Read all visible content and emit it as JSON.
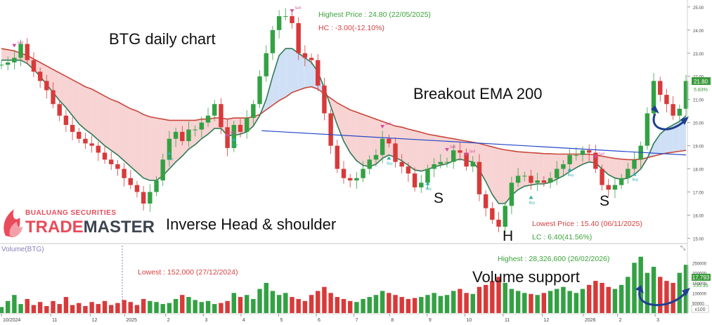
{
  "annotations": {
    "chart_title": "BTG daily chart",
    "breakout": "Breakout EMA 200",
    "pattern": "Inverse Head & shoulder",
    "shoulder_left": "S",
    "head": "H",
    "shoulder_right": "S",
    "volume_note": "Volume support",
    "highest_price": "Highest Price : 24.80 (22/05/2025)",
    "hc": "HC : -3.00(-12.10%)",
    "lowest_price": "Lowest Price : 15.40 (06/11/2025)",
    "lc": "LC : 6.40(41.56%)",
    "volume_highest": "Highest : 28,326,600 (26/02/2026)",
    "volume_lowest": "Lowest : 152,000 (27/12/2024)"
  },
  "logo": {
    "company": "BUALUANG SECURITIES",
    "brand_trade": "TRADE",
    "brand_master": "MASTER"
  },
  "volume_panel": {
    "label": "Volume(BTG)",
    "badge_value": "17,793",
    "badge_value2": "235.35",
    "x100_label": "x100"
  },
  "price_badges": {
    "last_price": "21.80",
    "change_pct": "5.83%"
  },
  "trade_signals": {
    "buy": "Buy",
    "sell": "Sell"
  },
  "chart_data": {
    "type": "line",
    "price_axis": {
      "ticks": [
        "15.00",
        "16.00",
        "17.00",
        "18.00",
        "19.00",
        "20.00",
        "21.00",
        "22.00",
        "23.00",
        "24.00",
        "25.00"
      ],
      "ylim": [
        14.8,
        25.3
      ]
    },
    "volume_axis": {
      "ticks": [
        "50000",
        "100000",
        "150000",
        "200000",
        "250000"
      ]
    },
    "x_axis": {
      "ticks": [
        "10/2024",
        "11",
        "12",
        "2025",
        "2",
        "3",
        "4",
        "5",
        "6",
        "7",
        "8",
        "9",
        "10",
        "11",
        "12",
        "2026",
        "2",
        "3"
      ]
    },
    "series": [
      {
        "name": "BTG",
        "style": "candlestick",
        "values": [
          22.5,
          22.6,
          22.8,
          23.4,
          22.7,
          22.2,
          21.8,
          21.4,
          20.8,
          20.3,
          19.9,
          19.6,
          19.3,
          19.1,
          19.0,
          18.7,
          18.4,
          18.2,
          18.0,
          17.6,
          17.3,
          17.0,
          16.5,
          17.0,
          17.5,
          18.4,
          19.3,
          19.6,
          19.2,
          19.7,
          19.7,
          20.0,
          20.3,
          20.8,
          19.8,
          18.9,
          19.9,
          19.6,
          20.2,
          20.8,
          22.0,
          23.0,
          24.0,
          24.6,
          24.6,
          24.3,
          23.0,
          22.8,
          22.7,
          21.6,
          20.4,
          19.0,
          18.0,
          17.6,
          17.5,
          17.6,
          18.0,
          18.4,
          18.6,
          19.3,
          19.1,
          18.3,
          18.1,
          17.8,
          17.2,
          17.4,
          18.0,
          18.2,
          18.3,
          18.3,
          18.8,
          18.7,
          18.1,
          18.3,
          16.9,
          16.3,
          15.8,
          15.5,
          16.4,
          17.4,
          17.7,
          17.7,
          17.4,
          17.5,
          17.4,
          17.6,
          18.0,
          18.2,
          18.6,
          18.6,
          18.8,
          18.7,
          18.0,
          17.3,
          17.1,
          17.3,
          17.6,
          18.0,
          18.4,
          19.0,
          20.4,
          21.8,
          21.2,
          20.8,
          20.3,
          20.6,
          21.8
        ]
      },
      {
        "name": "EMA 200",
        "style": "line",
        "values": [
          23.2,
          23.15,
          23.1,
          23.0,
          22.9,
          22.75,
          22.6,
          22.45,
          22.3,
          22.15,
          22.0,
          21.85,
          21.7,
          21.55,
          21.45,
          21.3,
          21.15,
          21.0,
          20.9,
          20.75,
          20.6,
          20.5,
          20.35,
          20.25,
          20.2,
          20.15,
          20.1,
          20.1,
          20.1,
          20.1,
          20.1,
          20.15,
          20.15,
          20.2,
          20.2,
          20.15,
          20.2,
          20.2,
          20.2,
          20.25,
          20.35,
          20.55,
          20.75,
          20.95,
          21.1,
          21.3,
          21.4,
          21.5,
          21.55,
          21.45,
          21.25,
          21.05,
          20.85,
          20.7,
          20.55,
          20.45,
          20.35,
          20.25,
          20.15,
          20.05,
          19.95,
          19.85,
          19.8,
          19.72,
          19.65,
          19.58,
          19.5,
          19.45,
          19.4,
          19.35,
          19.3,
          19.25,
          19.2,
          19.15,
          19.1,
          19.02,
          18.95,
          18.88,
          18.82,
          18.78,
          18.74,
          18.72,
          18.7,
          18.68,
          18.66,
          18.65,
          18.64,
          18.64,
          18.64,
          18.64,
          18.64,
          18.63,
          18.6,
          18.55,
          18.5,
          18.45,
          18.42,
          18.4,
          18.4,
          18.42,
          18.48,
          18.55,
          18.62,
          18.68,
          18.72,
          18.76,
          18.8
        ]
      },
      {
        "name": "EMA",
        "style": "line",
        "values": [
          22.7,
          22.7,
          22.7,
          22.7,
          22.55,
          22.3,
          22.0,
          21.65,
          21.3,
          20.95,
          20.65,
          20.3,
          19.95,
          19.7,
          19.5,
          19.25,
          19.0,
          18.8,
          18.6,
          18.35,
          18.1,
          17.85,
          17.6,
          17.5,
          17.5,
          17.7,
          18.0,
          18.3,
          18.55,
          18.85,
          19.05,
          19.3,
          19.5,
          19.75,
          19.75,
          19.45,
          19.45,
          19.5,
          19.6,
          19.85,
          20.3,
          21.0,
          22.0,
          22.9,
          23.2,
          23.2,
          23.0,
          22.8,
          22.6,
          22.2,
          21.5,
          20.7,
          19.9,
          19.2,
          18.7,
          18.35,
          18.15,
          18.1,
          18.2,
          18.45,
          18.6,
          18.5,
          18.35,
          18.15,
          17.95,
          17.9,
          17.98,
          18.08,
          18.16,
          18.22,
          18.35,
          18.42,
          18.35,
          18.3,
          17.95,
          17.45,
          16.9,
          16.5,
          16.5,
          16.85,
          17.1,
          17.25,
          17.3,
          17.35,
          17.35,
          17.42,
          17.55,
          17.7,
          17.88,
          18.05,
          18.2,
          18.3,
          18.25,
          18.0,
          17.75,
          17.6,
          17.55,
          17.6,
          17.75,
          18.0,
          18.45,
          19.1,
          19.5,
          19.75,
          19.9,
          20.05,
          20.3
        ]
      }
    ],
    "neckline": {
      "name": "Neckline",
      "x": [
        0.38,
        1.0
      ],
      "y": [
        19.65,
        18.6
      ]
    },
    "highest_price": 24.8,
    "lowest_price": 15.4,
    "volume_highest": 28326600,
    "volume_lowest": 152000,
    "volume": [
      30,
      60,
      90,
      45,
      70,
      40,
      55,
      35,
      60,
      45,
      80,
      40,
      50,
      35,
      55,
      45,
      60,
      40,
      50,
      65,
      55,
      40,
      70,
      60,
      55,
      45,
      50,
      70,
      90,
      80,
      65,
      55,
      60,
      45,
      50,
      60,
      100,
      80,
      90,
      70,
      120,
      150,
      110,
      90,
      100,
      80,
      70,
      60,
      90,
      110,
      130,
      100,
      80,
      70,
      60,
      55,
      70,
      80,
      90,
      110,
      100,
      90,
      80,
      70,
      75,
      80,
      90,
      100,
      85,
      90,
      110,
      120,
      100,
      95,
      130,
      140,
      160,
      180,
      150,
      120,
      110,
      100,
      95,
      90,
      100,
      110,
      120,
      130,
      110,
      100,
      120,
      140,
      160,
      150,
      130,
      120,
      140,
      180,
      250,
      280,
      200,
      230,
      180,
      160,
      150,
      200,
      240
    ]
  }
}
